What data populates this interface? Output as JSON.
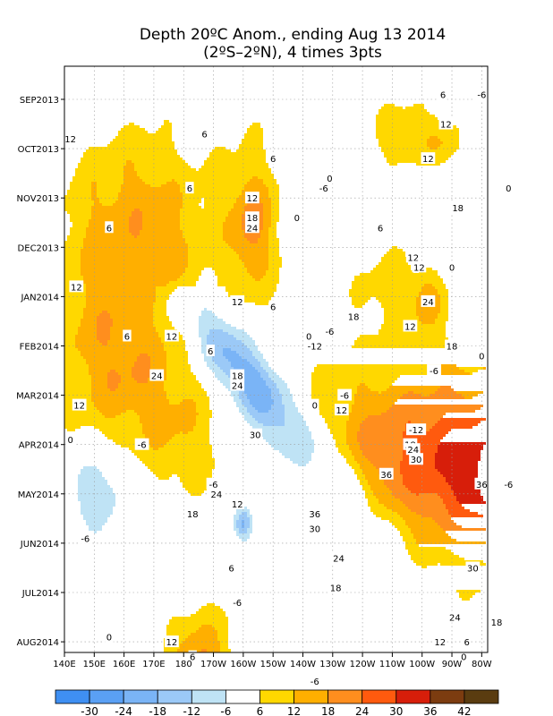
{
  "chart_data": {
    "type": "heatmap",
    "title": "Depth 20ºC Anom., ending Aug 13 2014",
    "subtitle": "(2ºS–2ºN), 4 times 3pts",
    "x_ticks": [
      "140E",
      "150E",
      "160E",
      "170E",
      "180",
      "170W",
      "160W",
      "150W",
      "140W",
      "130W",
      "120W",
      "110W",
      "100W",
      "90W",
      "80W"
    ],
    "y_ticks": [
      "SEP2013",
      "OCT2013",
      "NOV2013",
      "DEC2013",
      "JAN2014",
      "FEB2014",
      "MAR2014",
      "APR2014",
      "MAY2014",
      "JUN2014",
      "JUL2014",
      "AUG2014"
    ],
    "levels": [
      -30,
      -24,
      -18,
      -12,
      -6,
      6,
      12,
      18,
      24,
      30,
      36,
      42
    ],
    "colorbar_labels": [
      "-30",
      "-24",
      "-18",
      "-12",
      "-6",
      "6",
      "12",
      "18",
      "24",
      "30",
      "36",
      "42"
    ],
    "colors": [
      "#3f8ff2",
      "#5aa0f4",
      "#7ab4f6",
      "#9bc9f7",
      "#bfe3f5",
      "#ffffff",
      "#ffd800",
      "#ffaf00",
      "#ff8e1e",
      "#ff5a0e",
      "#d71e0a",
      "#7c3c10",
      "#5a3c10"
    ],
    "grid": true,
    "contour_labels": [
      {
        "text": "12",
        "lon": 142,
        "t": 0.8
      },
      {
        "text": "6",
        "lon": 187,
        "t": 0.7
      },
      {
        "text": "6",
        "lon": 210,
        "t": 1.2
      },
      {
        "text": "12",
        "lon": 268,
        "t": 0.5
      },
      {
        "text": "6",
        "lon": 267,
        "t": -0.1
      },
      {
        "text": "-6",
        "lon": 280,
        "t": -0.1
      },
      {
        "text": "12",
        "lon": 262,
        "t": 1.2
      },
      {
        "text": "6",
        "lon": 182,
        "t": 1.8
      },
      {
        "text": "12",
        "lon": 203,
        "t": 2.0
      },
      {
        "text": "18",
        "lon": 203,
        "t": 2.4
      },
      {
        "text": "24",
        "lon": 203,
        "t": 2.6
      },
      {
        "text": "-6",
        "lon": 227,
        "t": 1.8
      },
      {
        "text": "0",
        "lon": 229,
        "t": 1.6
      },
      {
        "text": "0",
        "lon": 218,
        "t": 2.4
      },
      {
        "text": "6",
        "lon": 246,
        "t": 2.6
      },
      {
        "text": "0",
        "lon": 289,
        "t": 1.8
      },
      {
        "text": "18",
        "lon": 272,
        "t": 2.2
      },
      {
        "text": "6",
        "lon": 155,
        "t": 2.6
      },
      {
        "text": "12",
        "lon": 257,
        "t": 3.2
      },
      {
        "text": "12",
        "lon": 259,
        "t": 3.4
      },
      {
        "text": "0",
        "lon": 270,
        "t": 3.4
      },
      {
        "text": "12",
        "lon": 144,
        "t": 3.8
      },
      {
        "text": "12",
        "lon": 198,
        "t": 4.1
      },
      {
        "text": "6",
        "lon": 210,
        "t": 4.2
      },
      {
        "text": "24",
        "lon": 262,
        "t": 4.1
      },
      {
        "text": "18",
        "lon": 237,
        "t": 4.4
      },
      {
        "text": "12",
        "lon": 256,
        "t": 4.6
      },
      {
        "text": "6",
        "lon": 161,
        "t": 4.8
      },
      {
        "text": "12",
        "lon": 176,
        "t": 4.8
      },
      {
        "text": "18",
        "lon": 270,
        "t": 5.0
      },
      {
        "text": "0",
        "lon": 222,
        "t": 4.8
      },
      {
        "text": "-6",
        "lon": 229,
        "t": 4.7
      },
      {
        "text": "-12",
        "lon": 224,
        "t": 5.0
      },
      {
        "text": "0",
        "lon": 280,
        "t": 5.2
      },
      {
        "text": "6",
        "lon": 189,
        "t": 5.1
      },
      {
        "text": "-6",
        "lon": 264,
        "t": 5.5
      },
      {
        "text": "18",
        "lon": 198,
        "t": 5.6
      },
      {
        "text": "24",
        "lon": 198,
        "t": 5.8
      },
      {
        "text": "24",
        "lon": 171,
        "t": 5.6
      },
      {
        "text": "-6",
        "lon": 234,
        "t": 6.0
      },
      {
        "text": "0",
        "lon": 224,
        "t": 6.2
      },
      {
        "text": "12",
        "lon": 233,
        "t": 6.3
      },
      {
        "text": "12",
        "lon": 145,
        "t": 6.2
      },
      {
        "text": "-12",
        "lon": 258,
        "t": 6.7
      },
      {
        "text": "0",
        "lon": 142,
        "t": 6.9
      },
      {
        "text": "-6",
        "lon": 166,
        "t": 7.0
      },
      {
        "text": "30",
        "lon": 204,
        "t": 6.8
      },
      {
        "text": "18",
        "lon": 256,
        "t": 7.0
      },
      {
        "text": "24",
        "lon": 257,
        "t": 7.1
      },
      {
        "text": "30",
        "lon": 258,
        "t": 7.3
      },
      {
        "text": "36",
        "lon": 248,
        "t": 7.6
      },
      {
        "text": "-6",
        "lon": 190,
        "t": 7.8
      },
      {
        "text": "36",
        "lon": 280,
        "t": 7.8
      },
      {
        "text": "-6",
        "lon": 289,
        "t": 7.8
      },
      {
        "text": "24",
        "lon": 191,
        "t": 8.0
      },
      {
        "text": "12",
        "lon": 198,
        "t": 8.2
      },
      {
        "text": "18",
        "lon": 183,
        "t": 8.4
      },
      {
        "text": "36",
        "lon": 224,
        "t": 8.4
      },
      {
        "text": "30",
        "lon": 224,
        "t": 8.7
      },
      {
        "text": "-6",
        "lon": 147,
        "t": 8.9
      },
      {
        "text": "24",
        "lon": 232,
        "t": 9.3
      },
      {
        "text": "30",
        "lon": 277,
        "t": 9.5
      },
      {
        "text": "6",
        "lon": 196,
        "t": 9.5
      },
      {
        "text": "18",
        "lon": 231,
        "t": 9.9
      },
      {
        "text": "-6",
        "lon": 198,
        "t": 10.2
      },
      {
        "text": "24",
        "lon": 271,
        "t": 10.5
      },
      {
        "text": "18",
        "lon": 285,
        "t": 10.6
      },
      {
        "text": "0",
        "lon": 155,
        "t": 10.9
      },
      {
        "text": "12",
        "lon": 176,
        "t": 11.0
      },
      {
        "text": "12",
        "lon": 266,
        "t": 11.0
      },
      {
        "text": "6",
        "lon": 275,
        "t": 11.0
      },
      {
        "text": "6",
        "lon": 183,
        "t": 11.3
      },
      {
        "text": "0",
        "lon": 274,
        "t": 11.3
      },
      {
        "text": "-6",
        "lon": 224,
        "t": 11.8
      }
    ]
  }
}
